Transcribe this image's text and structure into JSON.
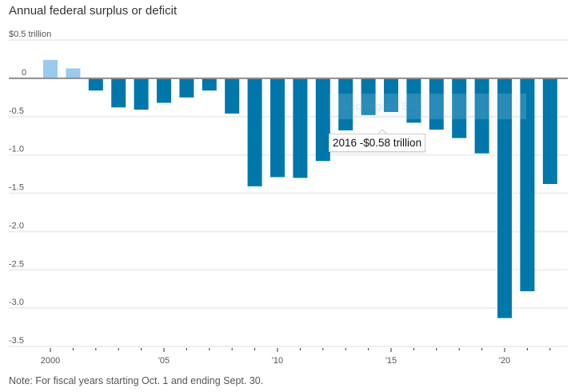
{
  "chart_data": {
    "type": "bar",
    "title": "Annual federal surplus or deficit",
    "note": "Note: For fiscal years starting Oct. 1 and ending Sept. 30.",
    "xlabel": "",
    "ylabel": "",
    "unit_label": "$0.5 trillion",
    "ylim": [
      -3.5,
      0.5
    ],
    "yticks": [
      {
        "value": 0.5,
        "label": "$0.5 trillion"
      },
      {
        "value": 0,
        "label": "0"
      },
      {
        "value": -0.5,
        "label": "-0.5"
      },
      {
        "value": -1.0,
        "label": "-1.0"
      },
      {
        "value": -1.5,
        "label": "-1.5"
      },
      {
        "value": -2.0,
        "label": "-2.0"
      },
      {
        "value": -2.5,
        "label": "-2.5"
      },
      {
        "value": -3.0,
        "label": "-3.0"
      },
      {
        "value": -3.5,
        "label": "-3.5"
      }
    ],
    "xticks": [
      {
        "year": 2000,
        "label": "2000"
      },
      {
        "year": 2005,
        "label": "'05"
      },
      {
        "year": 2010,
        "label": "'10"
      },
      {
        "year": 2015,
        "label": "'15"
      },
      {
        "year": 2020,
        "label": "'20"
      }
    ],
    "grid": true,
    "categories": [
      2000,
      2001,
      2002,
      2003,
      2004,
      2005,
      2006,
      2007,
      2008,
      2009,
      2010,
      2011,
      2012,
      2013,
      2014,
      2015,
      2016,
      2017,
      2018,
      2019,
      2020,
      2021,
      2022
    ],
    "values": [
      0.24,
      0.13,
      -0.16,
      -0.38,
      -0.41,
      -0.32,
      -0.25,
      -0.16,
      -0.46,
      -1.41,
      -1.29,
      -1.3,
      -1.08,
      -0.68,
      -0.48,
      -0.44,
      -0.58,
      -0.67,
      -0.78,
      -0.98,
      -3.13,
      -2.78,
      -1.38
    ],
    "colors": {
      "surplus": "#9acbee",
      "deficit": "#0077aa",
      "baseline": "#8e8e8e",
      "grid": "#eeeeee"
    },
    "tooltip": {
      "year": "2016",
      "text": "2016 -$0.58 trillion"
    }
  },
  "overlay": {
    "ghost_text": "Rectangular Snip"
  }
}
